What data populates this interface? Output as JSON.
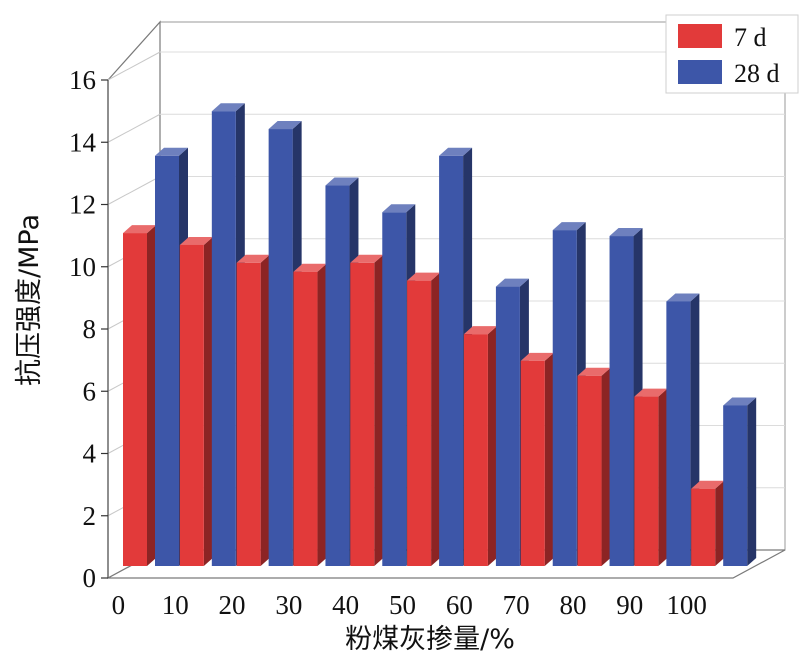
{
  "chart_data": {
    "type": "bar",
    "title": "",
    "xlabel": "粉煤灰掺量/%",
    "ylabel": "抗压强度/MPa",
    "categories": [
      "0",
      "10",
      "20",
      "30",
      "40",
      "50",
      "60",
      "70",
      "80",
      "90",
      "100"
    ],
    "series": [
      {
        "name": "7 d",
        "color": "#e23a3a",
        "values": [
          11.2,
          10.8,
          10.2,
          9.9,
          10.2,
          9.6,
          7.8,
          6.9,
          6.4,
          5.7,
          2.6
        ]
      },
      {
        "name": "28 d",
        "color": "#3d56a8",
        "values": [
          13.8,
          15.3,
          14.7,
          12.8,
          11.9,
          13.8,
          9.4,
          11.3,
          11.1,
          8.9,
          5.4
        ]
      }
    ],
    "ylim": [
      0,
      16
    ],
    "yticks": [
      "0",
      "2",
      "4",
      "6",
      "8",
      "10",
      "12",
      "14",
      "16"
    ],
    "grid": true,
    "legend_position": "top-right",
    "style": "3d-bar"
  }
}
